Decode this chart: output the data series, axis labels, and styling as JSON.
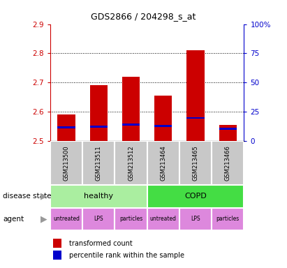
{
  "title": "GDS2866 / 204298_s_at",
  "samples": [
    "GSM213500",
    "GSM213511",
    "GSM213512",
    "GSM213464",
    "GSM213465",
    "GSM213466"
  ],
  "bar_tops": [
    2.59,
    2.69,
    2.72,
    2.655,
    2.81,
    2.555
  ],
  "bar_bottoms": [
    2.5,
    2.5,
    2.5,
    2.5,
    2.5,
    2.5
  ],
  "blue_vals": [
    2.545,
    2.548,
    2.556,
    2.551,
    2.578,
    2.54
  ],
  "ylim": [
    2.5,
    2.9
  ],
  "yticks_left": [
    2.5,
    2.6,
    2.7,
    2.8,
    2.9
  ],
  "yticks_right": [
    0,
    25,
    50,
    75,
    100
  ],
  "bar_color": "#cc0000",
  "blue_color": "#0000cc",
  "bar_width": 0.55,
  "disease_healthy_color": "#aaeea0",
  "disease_copd_color": "#44dd44",
  "agent_color": "#dd88dd",
  "agent_labels": [
    "untreated",
    "LPS",
    "particles",
    "untreated",
    "LPS",
    "particles"
  ],
  "left_label_color": "#cc0000",
  "right_label_color": "#0000cc",
  "sample_box_color": "#c8c8c8",
  "grid_color": "black"
}
